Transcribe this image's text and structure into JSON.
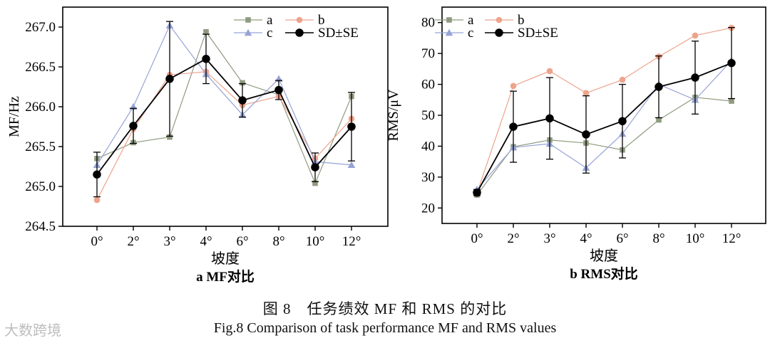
{
  "colors": {
    "a": "#8f9a80",
    "b": "#eea38c",
    "c": "#97a3d6",
    "sd": "#000000"
  },
  "chart_data": [
    {
      "type": "line",
      "subtitle": "a  MF对比",
      "xlabel": "坡度",
      "ylabel": "MF/Hz",
      "categories": [
        "0°",
        "2°",
        "3°",
        "4°",
        "6°",
        "8°",
        "10°",
        "12°"
      ],
      "ylim": [
        264.5,
        267.25
      ],
      "yticks": [
        "264.5",
        "265.0",
        "265.5",
        "266.0",
        "266.5",
        "267.0"
      ],
      "legend_position": "top-right",
      "series": [
        {
          "name": "a",
          "marker": "square",
          "values": [
            265.35,
            265.55,
            265.62,
            266.94,
            266.3,
            266.15,
            265.04,
            266.13
          ]
        },
        {
          "name": "b",
          "marker": "circle",
          "values": [
            264.83,
            265.72,
            266.4,
            266.44,
            266.02,
            266.13,
            265.35,
            265.85
          ]
        },
        {
          "name": "c",
          "marker": "triangle",
          "values": [
            265.27,
            266.0,
            267.02,
            266.41,
            265.9,
            266.35,
            265.31,
            265.27
          ]
        },
        {
          "name": "SD±SE",
          "marker": "circle-filled",
          "values": [
            265.15,
            265.76,
            266.35,
            266.6,
            266.08,
            266.21,
            265.24,
            265.75
          ],
          "error": [
            0.28,
            0.22,
            0.72,
            0.31,
            0.21,
            0.12,
            0.18,
            0.43
          ]
        }
      ]
    },
    {
      "type": "line",
      "subtitle": "b  RMS对比",
      "xlabel": "坡度",
      "ylabel": "RMS/μV",
      "categories": [
        "0°",
        "2°",
        "3°",
        "4°",
        "6°",
        "8°",
        "10°",
        "12°"
      ],
      "ylim": [
        15,
        85
      ],
      "yticks": [
        "20",
        "30",
        "40",
        "50",
        "60",
        "70",
        "80"
      ],
      "legend_position": "top-left",
      "series": [
        {
          "name": "a",
          "marker": "square",
          "values": [
            24.2,
            39.8,
            42.0,
            41.0,
            38.8,
            48.5,
            55.8,
            54.6
          ]
        },
        {
          "name": "b",
          "marker": "circle",
          "values": [
            24.8,
            59.5,
            64.3,
            57.2,
            61.5,
            69.0,
            75.8,
            78.3
          ]
        },
        {
          "name": "c",
          "marker": "triangle",
          "values": [
            26.0,
            39.6,
            40.8,
            33.0,
            44.0,
            60.0,
            55.0,
            67.7
          ]
        },
        {
          "name": "SD±SE",
          "marker": "circle-filled",
          "values": [
            25.0,
            46.3,
            49.0,
            43.8,
            48.1,
            59.2,
            62.2,
            66.9
          ],
          "error": [
            1.0,
            11.5,
            13.2,
            12.5,
            11.9,
            10.0,
            11.8,
            11.5
          ]
        }
      ]
    }
  ],
  "caption": {
    "cn": "图 8　任务绩效 MF 和 RMS 的对比",
    "en": "Fig.8 Comparison of task performance MF and RMS values"
  },
  "watermark": "大数跨境"
}
